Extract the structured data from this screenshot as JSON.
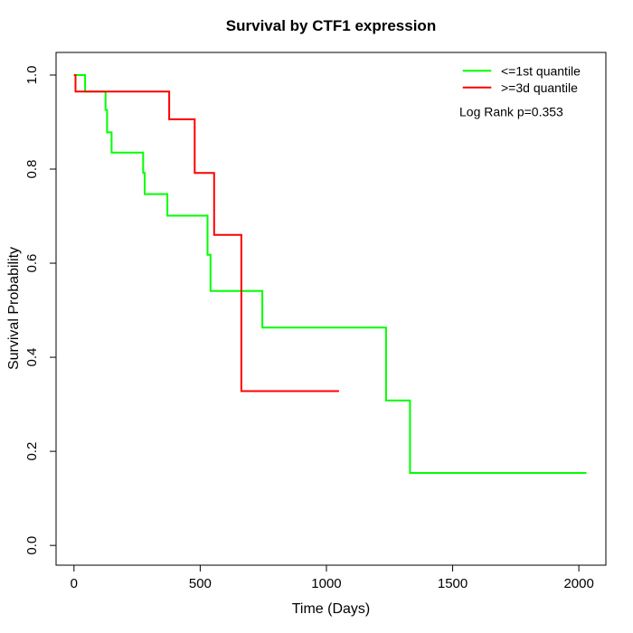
{
  "chart_data": {
    "type": "line",
    "subtype": "kaplan-meier-step",
    "title": "Survival by CTF1 expression",
    "xlabel": "Time (Days)",
    "ylabel": "Survival Probability",
    "x_ticks": [
      0,
      500,
      1000,
      1500,
      2000
    ],
    "x_tick_labels": [
      "0",
      "500",
      "1000",
      "1500",
      "2000"
    ],
    "y_ticks": [
      0,
      0.2,
      0.4,
      0.6,
      0.8,
      1.0
    ],
    "y_tick_labels": [
      "0.0",
      "0.2",
      "0.4",
      "0.6",
      "0.8",
      "1.0"
    ],
    "xlim": [
      -71,
      2107
    ],
    "ylim": [
      -0.042,
      1.048
    ],
    "grid": false,
    "legend_position": "top-right",
    "annotation": "Log Rank p=0.353",
    "series": [
      {
        "name": "<=1st quantile",
        "color": "#00ff00",
        "points": [
          [
            0,
            1.0
          ],
          [
            44,
            0.965
          ],
          [
            125,
            0.926
          ],
          [
            131,
            0.878
          ],
          [
            149,
            0.835
          ],
          [
            274,
            0.792
          ],
          [
            280,
            0.747
          ],
          [
            370,
            0.701
          ],
          [
            529,
            0.618
          ],
          [
            541,
            0.541
          ],
          [
            746,
            0.463
          ],
          [
            1236,
            0.308
          ],
          [
            1331,
            0.154
          ],
          [
            2030,
            0.154
          ]
        ]
      },
      {
        "name": ">=3d quantile",
        "color": "#ff0000",
        "points": [
          [
            0,
            1.0
          ],
          [
            6,
            0.965
          ],
          [
            377,
            0.906
          ],
          [
            478,
            0.792
          ],
          [
            555,
            0.66
          ],
          [
            663,
            0.328
          ],
          [
            1050,
            0.328
          ]
        ]
      }
    ]
  }
}
